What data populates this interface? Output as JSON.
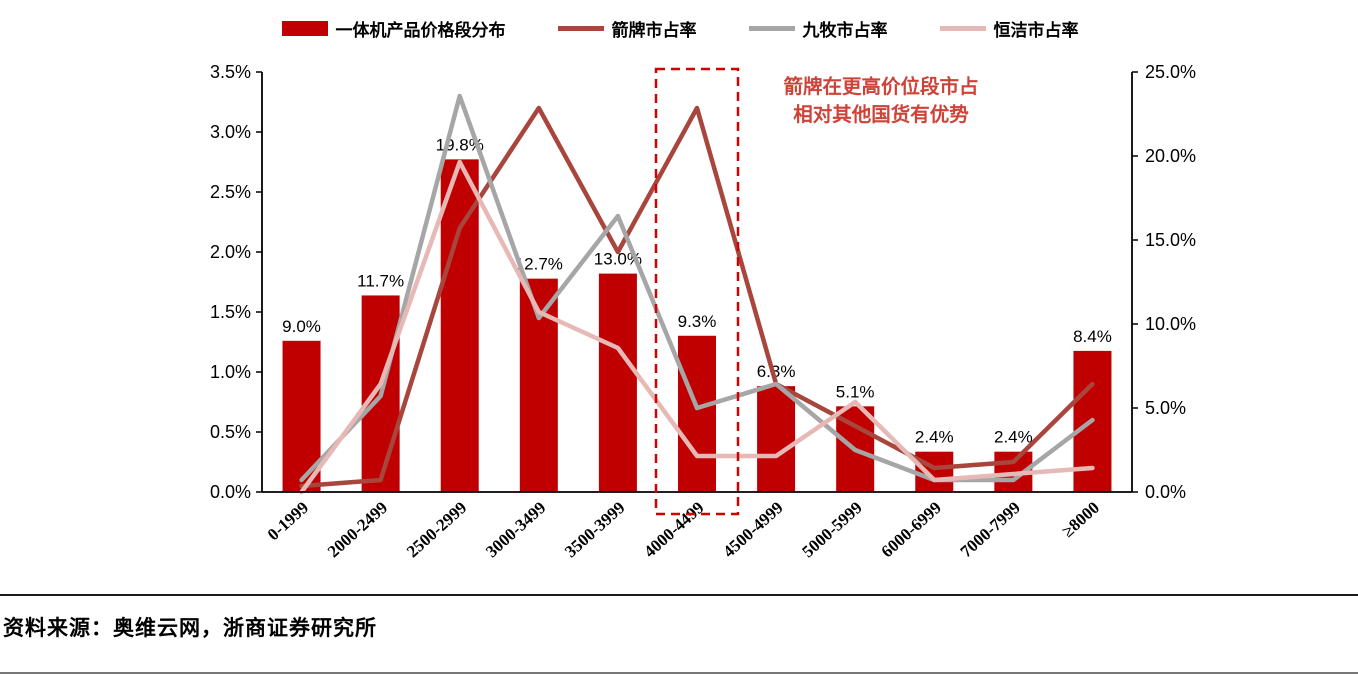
{
  "chart_data": {
    "type": "combo-bar-line",
    "grid": false,
    "legend_position": "top",
    "categories": [
      "0-1999",
      "2000-2499",
      "2500-2999",
      "3000-3499",
      "3500-3999",
      "4000-4499",
      "4500-4999",
      "5000-5999",
      "6000-6999",
      "7000-7999",
      "≥8000"
    ],
    "bar_series": {
      "name": "一体机产品价格段分布",
      "axis": "right",
      "color": "#C00000",
      "values": [
        9.0,
        11.7,
        19.8,
        12.7,
        13.0,
        9.3,
        6.3,
        5.1,
        2.4,
        2.4,
        8.4
      ],
      "labels": [
        "9.0%",
        "11.7%",
        "19.8%",
        "12.7%",
        "13.0%",
        "9.3%",
        "6.3%",
        "5.1%",
        "2.4%",
        "2.4%",
        "8.4%"
      ]
    },
    "line_series": [
      {
        "name": "箭牌市占率",
        "axis": "left",
        "color": "#A8463E",
        "values": [
          0.05,
          0.1,
          2.2,
          3.2,
          2.0,
          3.2,
          0.9,
          0.55,
          0.2,
          0.25,
          0.9
        ]
      },
      {
        "name": "九牧市占率",
        "axis": "left",
        "color": "#A6A6A6",
        "values": [
          0.1,
          0.8,
          3.3,
          1.45,
          2.3,
          0.7,
          0.9,
          0.35,
          0.1,
          0.1,
          0.6
        ]
      },
      {
        "name": "恒洁市占率",
        "axis": "left",
        "color": "#E6B9B6",
        "values": [
          0.0,
          0.9,
          2.75,
          1.5,
          1.2,
          0.3,
          0.3,
          0.75,
          0.1,
          0.15,
          0.2
        ]
      }
    ],
    "left_axis": {
      "min": 0,
      "max": 3.5,
      "step": 0.5,
      "ticks": [
        "0.0%",
        "0.5%",
        "1.0%",
        "1.5%",
        "2.0%",
        "2.5%",
        "3.0%",
        "3.5%"
      ]
    },
    "right_axis": {
      "min": 0,
      "max": 25,
      "step": 5,
      "ticks": [
        "0.0%",
        "5.0%",
        "10.0%",
        "15.0%",
        "20.0%",
        "25.0%"
      ]
    },
    "annotation": {
      "line1": "箭牌在更高价位段市占",
      "line2": "相对其他国货有优势",
      "color": "#CE4238",
      "box_color": "#D20000",
      "highlight_category": "4000-4499"
    }
  },
  "footer": {
    "source": "资料来源：奥维云网，浙商证券研究所"
  }
}
